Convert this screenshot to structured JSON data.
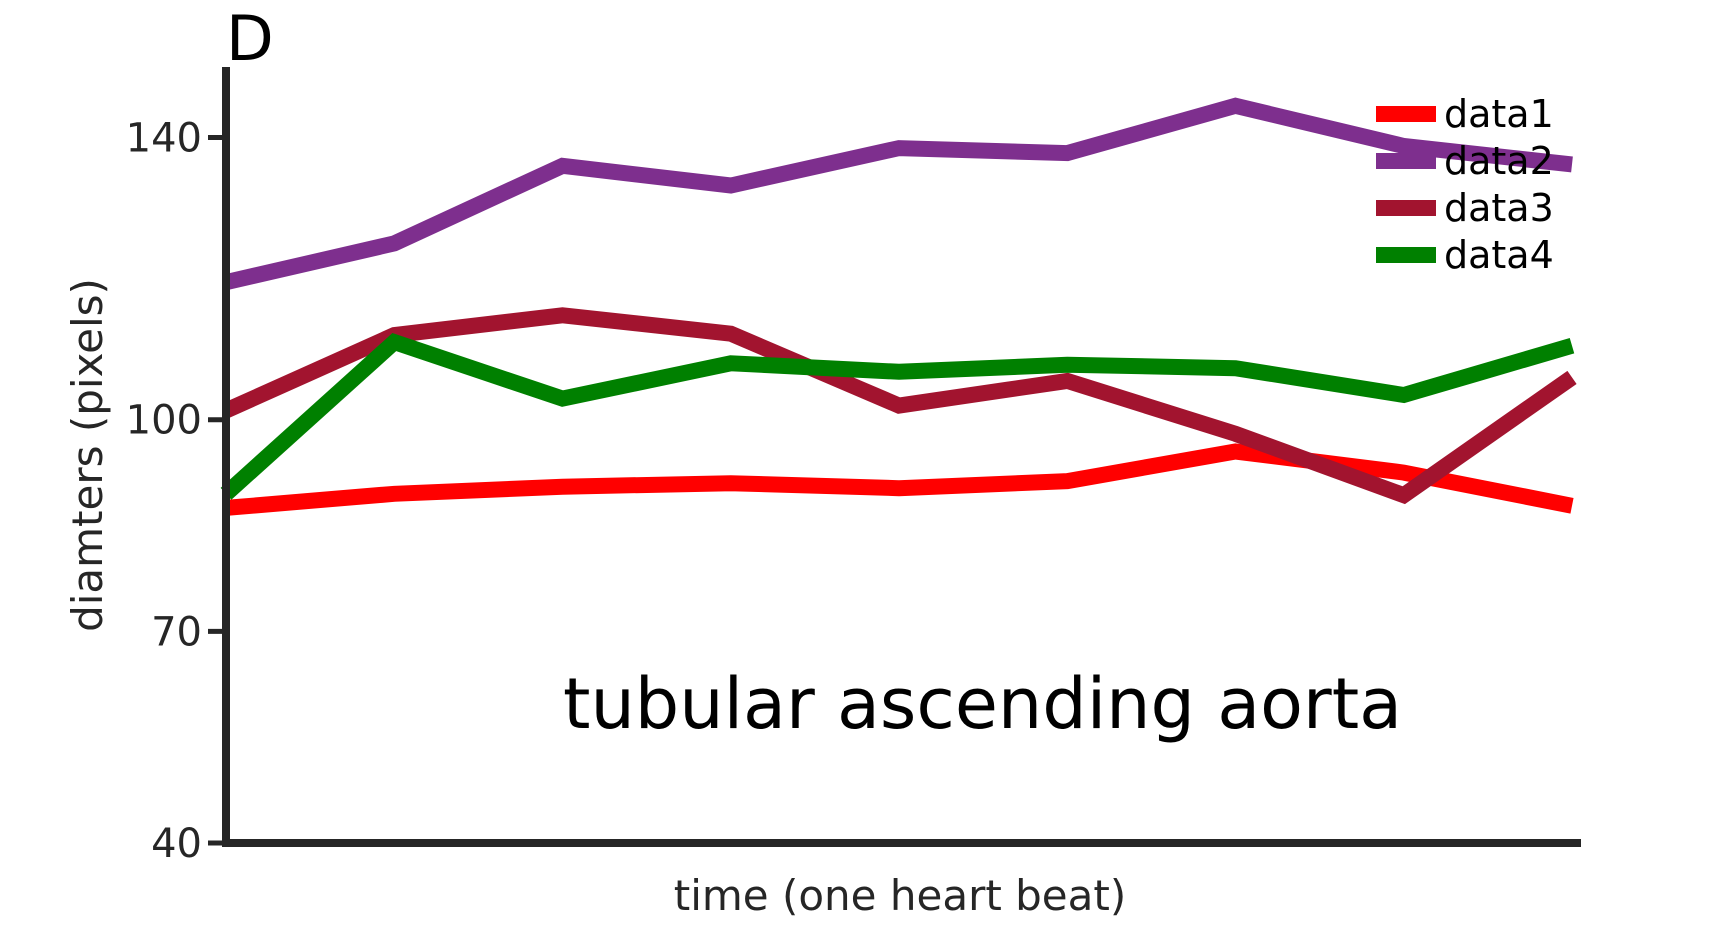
{
  "chart_data": {
    "type": "line",
    "panel_label": "D",
    "title": "",
    "xlabel": "time (one heart beat)",
    "ylabel": "diamters (pixels)",
    "annotation": "tubular ascending aorta",
    "ylim": [
      40,
      150
    ],
    "yticks": [
      40,
      70,
      100,
      140
    ],
    "ytick_labels": [
      "40",
      "70",
      "100",
      "140"
    ],
    "x": [
      1,
      2,
      3,
      4,
      5,
      6,
      7,
      8,
      9
    ],
    "xlim": [
      1,
      9
    ],
    "grid": false,
    "legend_position": "top-right",
    "series": [
      {
        "name": "data1",
        "color": "#ff0000",
        "values": [
          87.5,
          89.5,
          90.5,
          91,
          90.3,
          91.3,
          95.5,
          92.5,
          87.8
        ]
      },
      {
        "name": "data2",
        "color": "#7e2f8e",
        "values": [
          119.5,
          125,
          136,
          133.2,
          138.5,
          137.8,
          144.5,
          138.8,
          136.2
        ]
      },
      {
        "name": "data3",
        "color": "#a2142f",
        "values": [
          101.3,
          112,
          114.8,
          112.2,
          102,
          105.5,
          98,
          89.3,
          106
        ]
      },
      {
        "name": "data4",
        "color": "#008000",
        "values": [
          89.5,
          111,
          103,
          108,
          106.8,
          107.8,
          107.3,
          103.5,
          110.5
        ]
      }
    ]
  }
}
